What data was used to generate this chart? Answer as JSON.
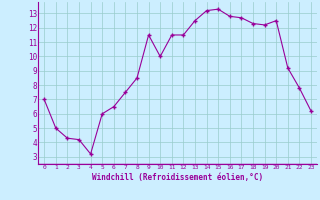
{
  "x": [
    0,
    1,
    2,
    3,
    4,
    5,
    6,
    7,
    8,
    9,
    10,
    11,
    12,
    13,
    14,
    15,
    16,
    17,
    18,
    19,
    20,
    21,
    22,
    23
  ],
  "y": [
    7.0,
    5.0,
    4.3,
    4.2,
    3.2,
    6.0,
    6.5,
    7.5,
    8.5,
    11.5,
    10.0,
    11.5,
    11.5,
    12.5,
    13.2,
    13.3,
    12.8,
    12.7,
    12.3,
    12.2,
    12.5,
    9.2,
    7.8,
    6.2
  ],
  "line_color": "#990099",
  "marker_color": "#990099",
  "bg_color": "#cceeff",
  "grid_color": "#99cccc",
  "axis_label_color": "#990099",
  "tick_color": "#990099",
  "xlabel": "Windchill (Refroidissement éolien,°C)",
  "ylim": [
    2.5,
    13.8
  ],
  "xlim": [
    -0.5,
    23.5
  ],
  "yticks": [
    3,
    4,
    5,
    6,
    7,
    8,
    9,
    10,
    11,
    12,
    13
  ],
  "xticks": [
    0,
    1,
    2,
    3,
    4,
    5,
    6,
    7,
    8,
    9,
    10,
    11,
    12,
    13,
    14,
    15,
    16,
    17,
    18,
    19,
    20,
    21,
    22,
    23
  ]
}
